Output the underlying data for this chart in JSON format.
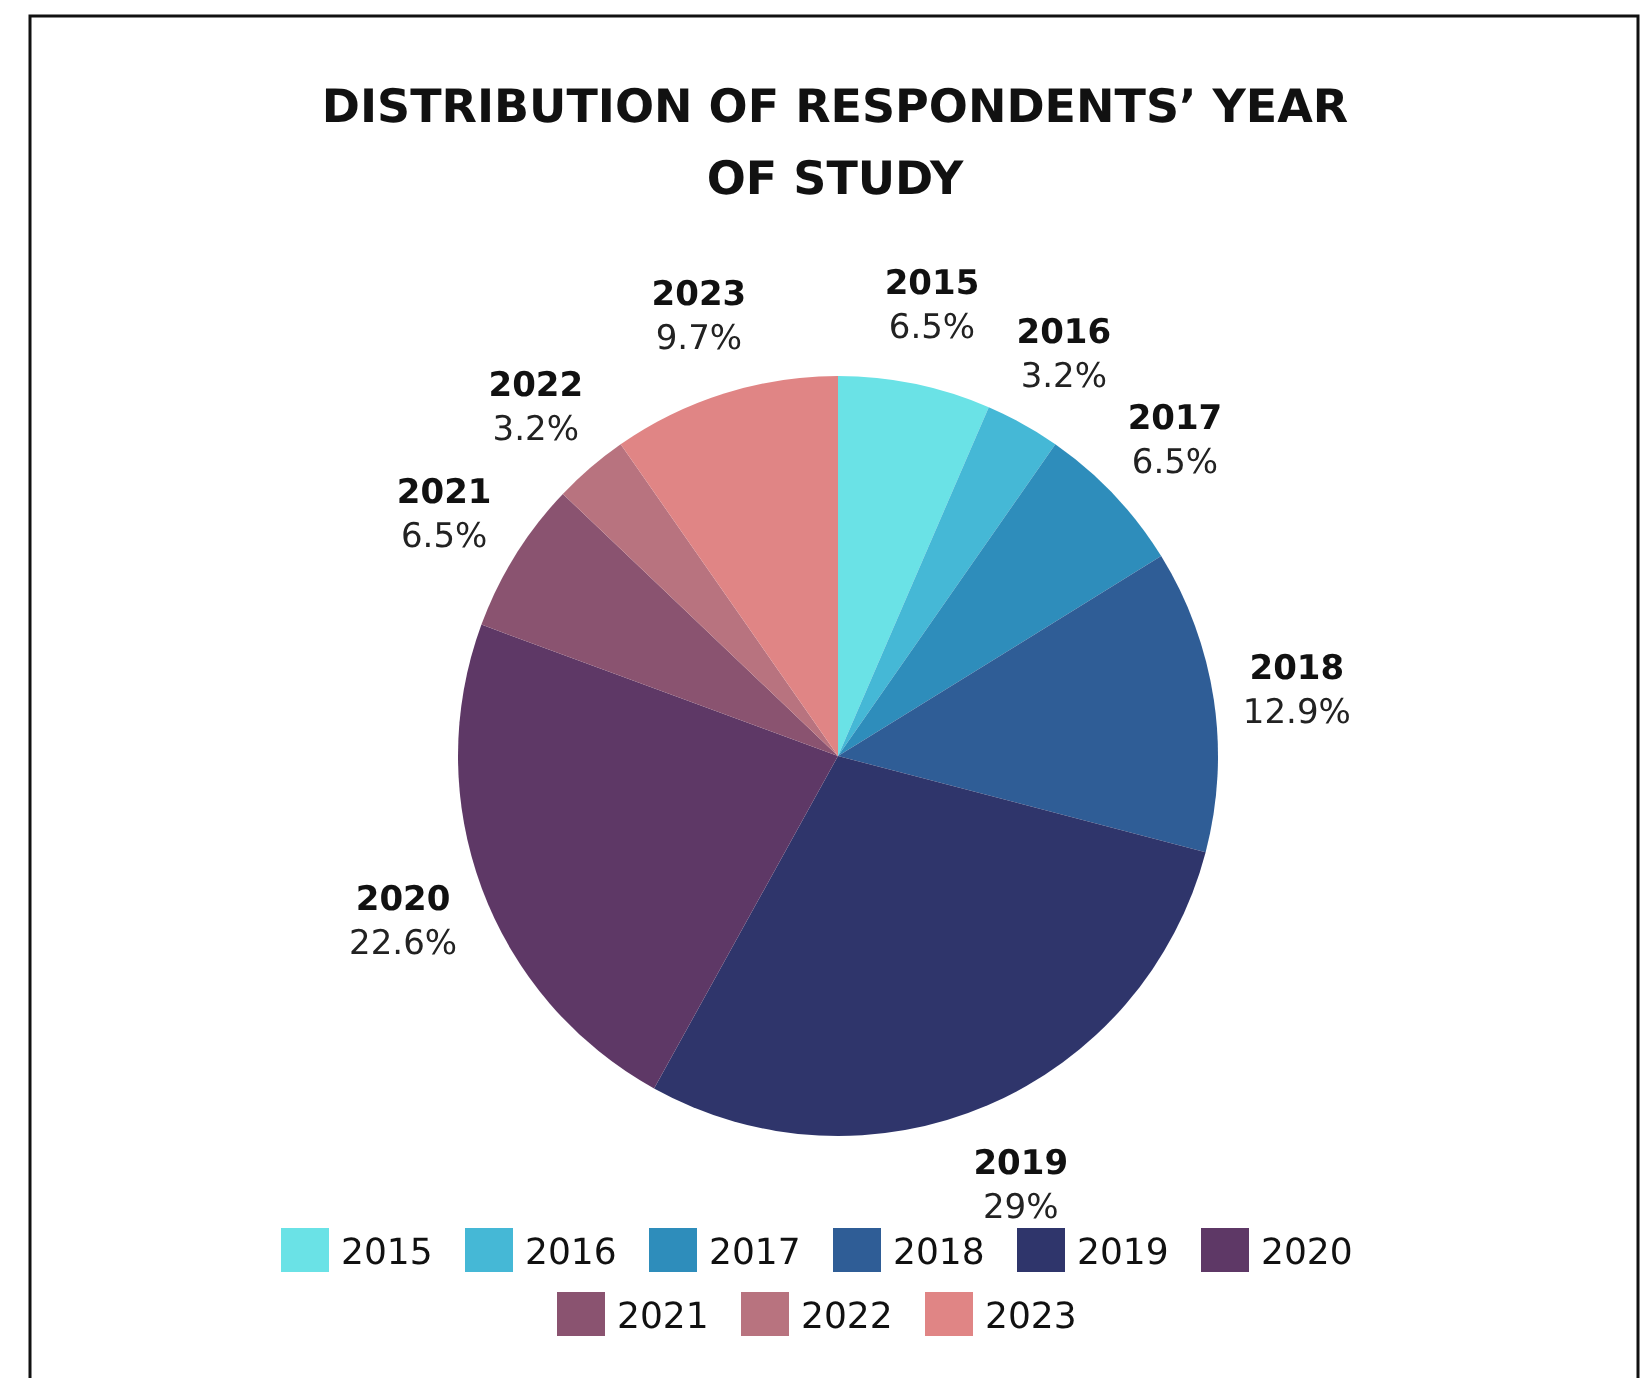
{
  "chart_data": {
    "type": "pie",
    "title": "DISTRIBUTION OF RESPONDENTS’ YEAR OF STUDY",
    "categories": [
      "2015",
      "2016",
      "2017",
      "2018",
      "2019",
      "2020",
      "2021",
      "2022",
      "2023"
    ],
    "values": [
      6.5,
      3.2,
      6.5,
      12.9,
      29,
      22.6,
      6.5,
      3.2,
      9.7
    ],
    "colors": [
      "#6ae2e6",
      "#45b8d6",
      "#2e8dbb",
      "#2f5d96",
      "#2f356b",
      "#5e3866",
      "#8a5370",
      "#b8737f",
      "#e08585"
    ],
    "value_labels": [
      "6.5%",
      "3.2%",
      "6.5%",
      "12.9%",
      "29%",
      "22.6%",
      "6.5%",
      "3.2%",
      "9.7%"
    ],
    "legend": "bottom"
  }
}
